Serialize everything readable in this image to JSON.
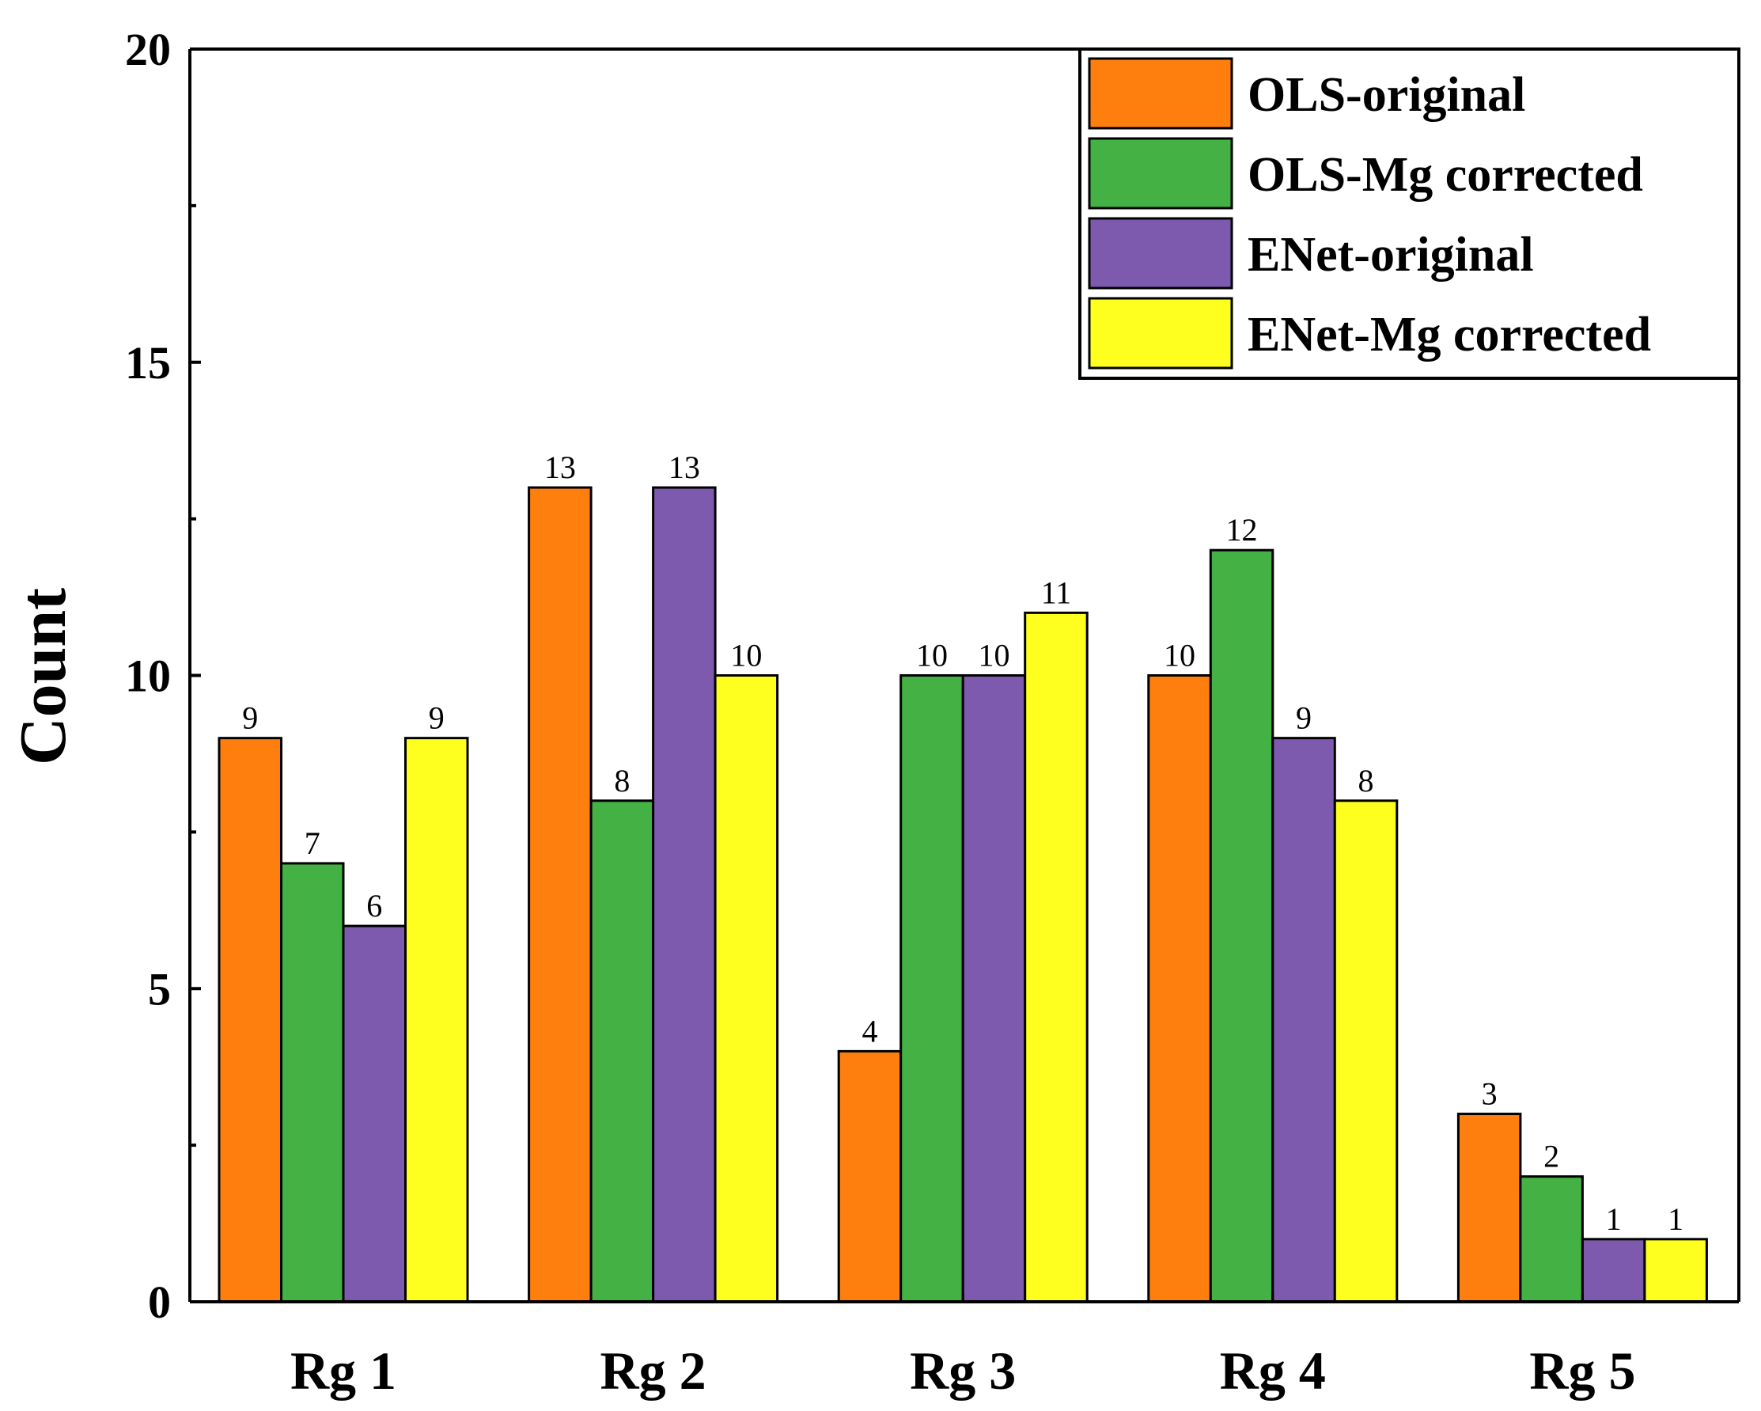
{
  "chart_data": {
    "type": "bar",
    "title": "",
    "xlabel": "",
    "ylabel": "Count",
    "ylim": [
      0,
      20
    ],
    "yticks": [
      0,
      5,
      10,
      15,
      20
    ],
    "categories": [
      "Rg 1",
      "Rg 2",
      "Rg 3",
      "Rg 4",
      "Rg 5"
    ],
    "series": [
      {
        "name": "OLS-original",
        "color": "#FF7F0E",
        "values": [
          9,
          13,
          4,
          10,
          3
        ]
      },
      {
        "name": "OLS-Mg corrected",
        "color": "#44B144",
        "values": [
          7,
          8,
          10,
          12,
          2
        ]
      },
      {
        "name": "ENet-original",
        "color": "#7E5AAE",
        "values": [
          6,
          13,
          10,
          9,
          1
        ]
      },
      {
        "name": "ENet-Mg corrected",
        "color": "#FFFF1F",
        "values": [
          9,
          10,
          11,
          8,
          1
        ]
      }
    ],
    "legend_position": "top-right",
    "data_labels": true
  }
}
